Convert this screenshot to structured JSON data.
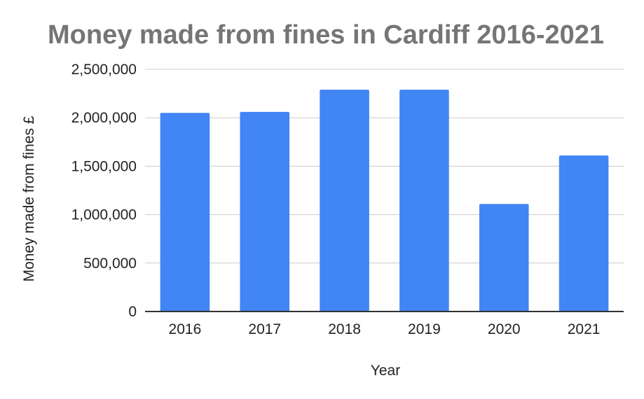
{
  "chart_data": {
    "type": "bar",
    "title": "Money made from fines in Cardiff 2016-2021",
    "xlabel": "Year",
    "ylabel": "Money made from fines £",
    "categories": [
      "2016",
      "2017",
      "2018",
      "2019",
      "2020",
      "2021"
    ],
    "values": [
      2050000,
      2060000,
      2290000,
      2290000,
      1110000,
      1610000
    ],
    "ylim": [
      0,
      2500000
    ],
    "yticks": [
      "0",
      "500,000",
      "1,000,000",
      "1,500,000",
      "2,000,000",
      "2,500,000"
    ],
    "grid": true,
    "legend": "none",
    "colors": {
      "bar": "#4285f4",
      "title": "#757575"
    }
  }
}
